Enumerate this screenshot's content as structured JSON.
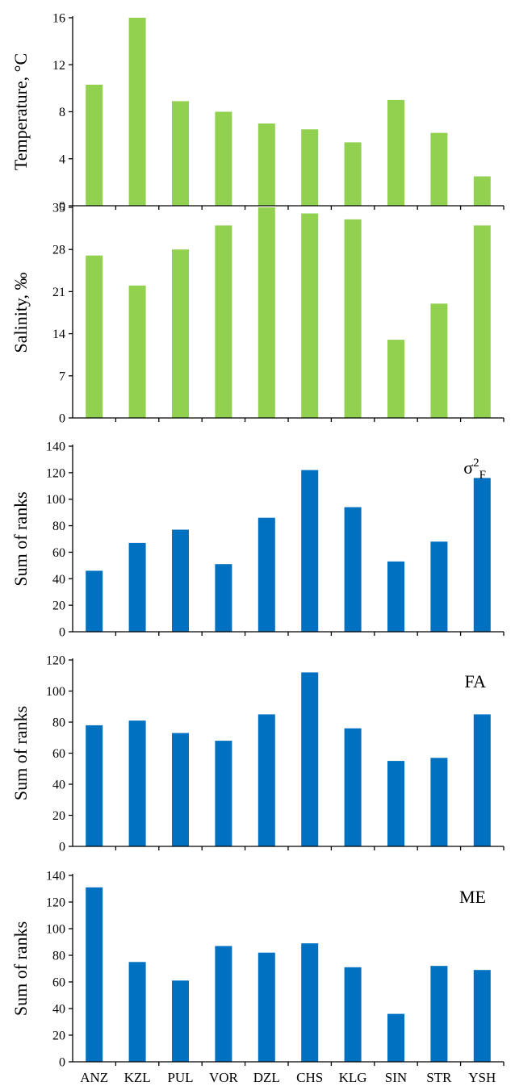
{
  "chart_data": [
    {
      "type": "bar",
      "categories": [
        "ANZ",
        "KZL",
        "PUL",
        "VOR",
        "DZL",
        "CHS",
        "KLG",
        "SIN",
        "STR",
        "YSH"
      ],
      "values": [
        10.3,
        16.0,
        8.9,
        8.0,
        7.0,
        6.5,
        5.4,
        9.0,
        6.2,
        2.5
      ],
      "ylabel": "Temperature, °C",
      "panel_label": "",
      "ylim": [
        0,
        16
      ],
      "yticks": [
        0,
        4,
        8,
        12,
        16
      ],
      "color": "#92d050"
    },
    {
      "type": "bar",
      "categories": [
        "ANZ",
        "KZL",
        "PUL",
        "VOR",
        "DZL",
        "CHS",
        "KLG",
        "SIN",
        "STR",
        "YSH"
      ],
      "values": [
        27,
        22,
        28,
        32,
        35,
        34,
        33,
        13,
        19,
        32
      ],
      "ylabel": "Salinity, ‰",
      "panel_label": "",
      "ylim": [
        0,
        35
      ],
      "yticks": [
        0,
        7,
        14,
        21,
        28,
        35
      ],
      "color": "#92d050"
    },
    {
      "type": "bar",
      "categories": [
        "ANZ",
        "KZL",
        "PUL",
        "VOR",
        "DZL",
        "CHS",
        "KLG",
        "SIN",
        "STR",
        "YSH"
      ],
      "values": [
        46,
        67,
        77,
        51,
        86,
        122,
        94,
        53,
        68,
        116
      ],
      "ylabel": "Sum of ranks",
      "panel_label": "σ",
      "panel_label_sup": "2",
      "panel_label_sub": "F",
      "ylim": [
        0,
        140
      ],
      "yticks": [
        0,
        20,
        40,
        60,
        80,
        100,
        120,
        140
      ],
      "color": "#0070c0"
    },
    {
      "type": "bar",
      "categories": [
        "ANZ",
        "KZL",
        "PUL",
        "VOR",
        "DZL",
        "CHS",
        "KLG",
        "SIN",
        "STR",
        "YSH"
      ],
      "values": [
        78,
        81,
        73,
        68,
        85,
        112,
        76,
        55,
        57,
        85
      ],
      "ylabel": "Sum of ranks",
      "panel_label": "FA",
      "ylim": [
        0,
        120
      ],
      "yticks": [
        0,
        20,
        40,
        60,
        80,
        100,
        120
      ],
      "color": "#0070c0"
    },
    {
      "type": "bar",
      "categories": [
        "ANZ",
        "KZL",
        "PUL",
        "VOR",
        "DZL",
        "CHS",
        "KLG",
        "SIN",
        "STR",
        "YSH"
      ],
      "values": [
        131,
        75,
        61,
        87,
        82,
        89,
        71,
        36,
        72,
        69
      ],
      "ylabel": "Sum of ranks",
      "panel_label": "ME",
      "ylim": [
        0,
        140
      ],
      "yticks": [
        0,
        20,
        40,
        60,
        80,
        100,
        120,
        140
      ],
      "color": "#0070c0"
    }
  ]
}
